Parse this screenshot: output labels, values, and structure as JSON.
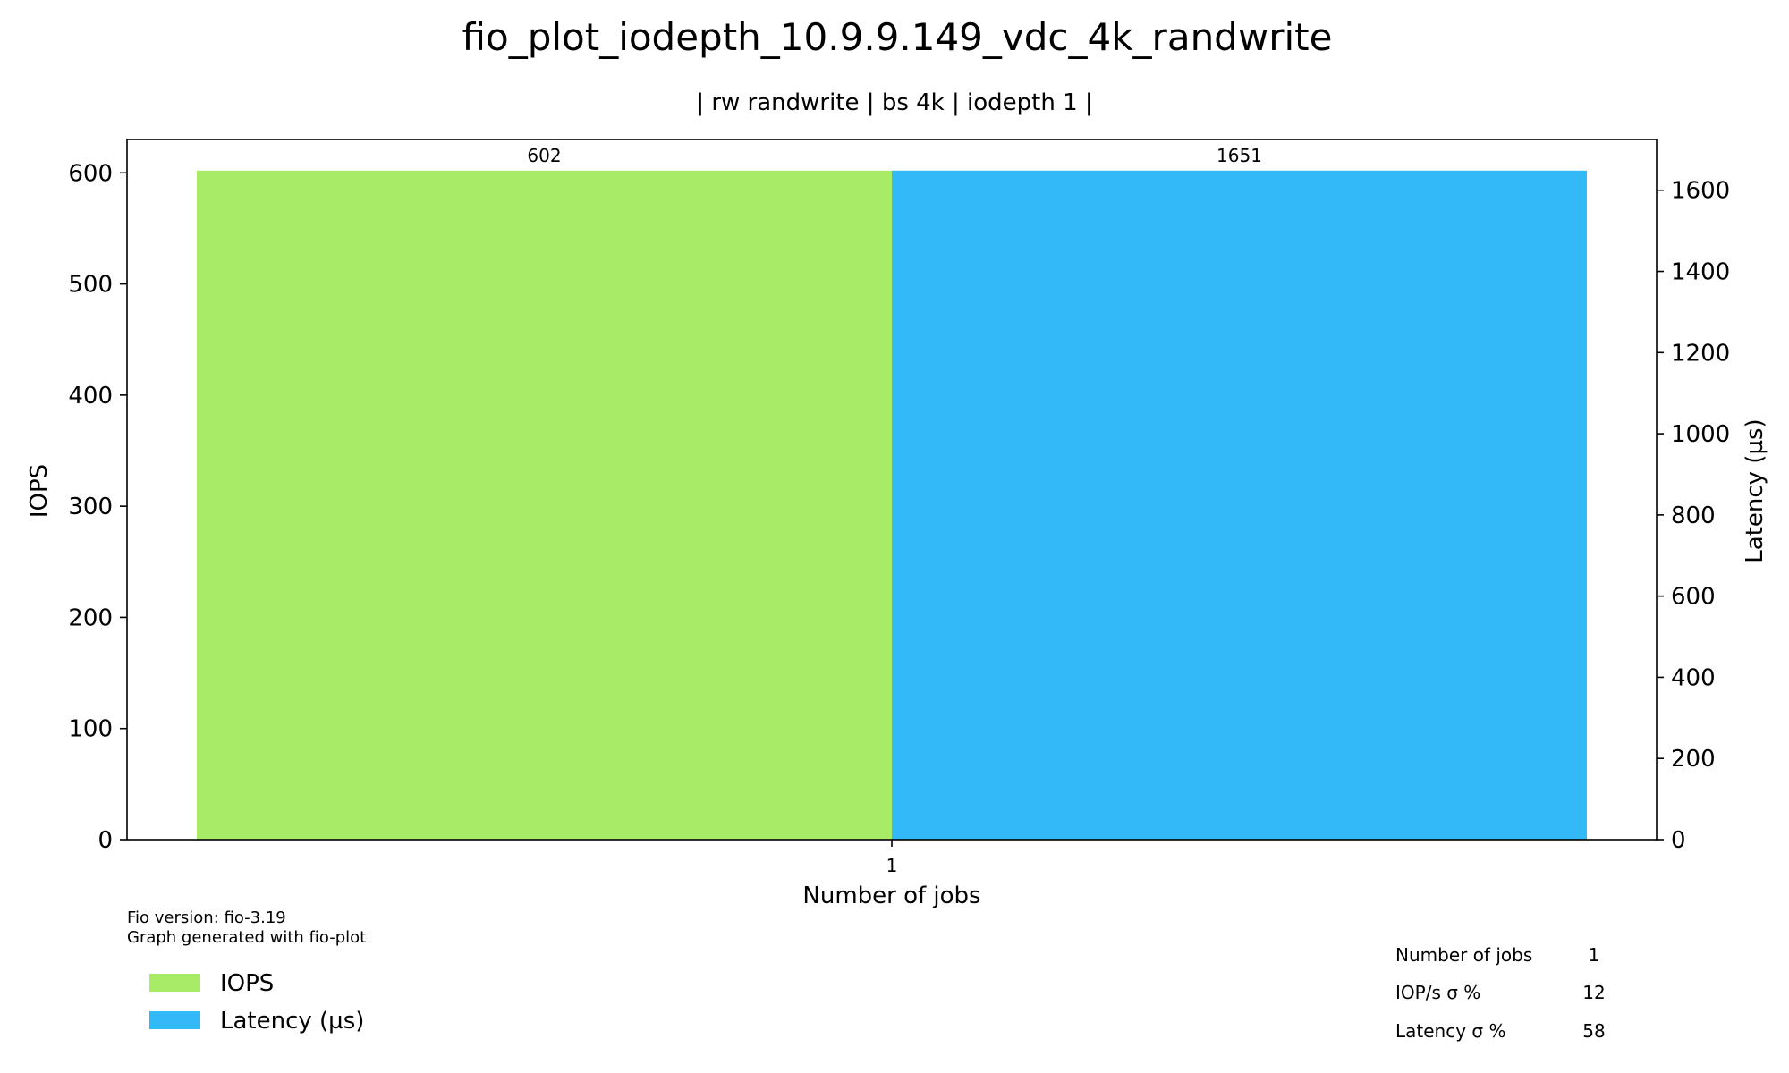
{
  "chart_data": {
    "type": "bar",
    "title": "fio_plot_iodepth_10.9.9.149_vdc_4k_randwrite",
    "subtitle": "| rw randwrite | bs 4k | iodepth 1 |",
    "xlabel": "Number of jobs",
    "categories": [
      "1"
    ],
    "y_left": {
      "label": "IOPS",
      "lim": [
        0,
        630
      ],
      "ticks": [
        0,
        100,
        200,
        300,
        400,
        500,
        600
      ]
    },
    "y_right": {
      "label": "Latency (µs)",
      "lim": [
        0,
        1725
      ],
      "ticks": [
        0,
        200,
        400,
        600,
        800,
        1000,
        1200,
        1400,
        1600
      ]
    },
    "series": [
      {
        "name": "IOPS",
        "axis": "left",
        "values": [
          602
        ],
        "data_labels": [
          "602"
        ],
        "color": "#a8eb67"
      },
      {
        "name": "Latency (µs)",
        "axis": "right",
        "values": [
          1651
        ],
        "data_labels": [
          "1651"
        ],
        "color": "#33b8f8"
      }
    ],
    "grid": false,
    "legend_position": "bottom-left"
  },
  "footnote": {
    "line1": "Fio version: fio-3.19",
    "line2": "Graph generated with fio-plot"
  },
  "stats_table": {
    "rows": [
      {
        "label": "Number of jobs",
        "value": "1"
      },
      {
        "label": "IOP/s σ %",
        "value": "12"
      },
      {
        "label": "Latency σ %",
        "value": "58"
      }
    ]
  }
}
